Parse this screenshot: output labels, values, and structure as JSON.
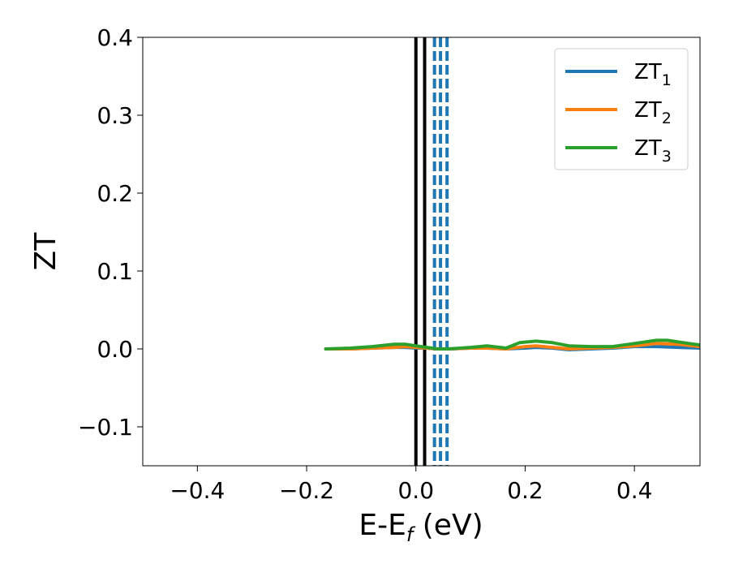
{
  "chart_data": {
    "type": "line",
    "xlabel_main": "E-E",
    "xlabel_sub": "f",
    "xlabel_unit": " (eV)",
    "ylabel": "ZT",
    "xlim": [
      -0.5,
      0.52
    ],
    "ylim": [
      -0.15,
      0.4
    ],
    "xticks": [
      -0.4,
      -0.2,
      0.0,
      0.2,
      0.4
    ],
    "xtick_labels": [
      "−0.4",
      "−0.2",
      "0.0",
      "0.2",
      "0.4"
    ],
    "yticks": [
      -0.1,
      0.0,
      0.1,
      0.2,
      0.3,
      0.4
    ],
    "ytick_labels": [
      "−0.1",
      "0.0",
      "0.1",
      "0.2",
      "0.3",
      "0.4"
    ],
    "grid": false,
    "legend_position": "top-right",
    "series": [
      {
        "name": "ZT",
        "name_sub": "1",
        "color": "#1f77b4",
        "x": [
          -0.165,
          -0.12,
          -0.08,
          -0.04,
          -0.02,
          0.0,
          0.02,
          0.04,
          0.06,
          0.1,
          0.13,
          0.165,
          0.2,
          0.22,
          0.25,
          0.28,
          0.32,
          0.36,
          0.4,
          0.44,
          0.48,
          0.52
        ],
        "y": [
          0.0,
          0.0,
          0.001,
          0.002,
          0.002,
          0.001,
          0.001,
          0.0,
          0.0,
          0.001,
          0.001,
          0.0,
          0.001,
          0.002,
          0.001,
          -0.001,
          0.0,
          0.001,
          0.003,
          0.003,
          0.002,
          0.001
        ]
      },
      {
        "name": "ZT",
        "name_sub": "2",
        "color": "#ff7f0e",
        "x": [
          -0.165,
          -0.12,
          -0.08,
          -0.04,
          -0.02,
          0.0,
          0.02,
          0.04,
          0.06,
          0.1,
          0.13,
          0.165,
          0.2,
          0.22,
          0.25,
          0.28,
          0.32,
          0.36,
          0.4,
          0.44,
          0.48,
          0.52
        ],
        "y": [
          0.0,
          0.0,
          0.001,
          0.002,
          0.003,
          0.002,
          0.001,
          0.0,
          0.0,
          0.001,
          0.001,
          0.0,
          0.003,
          0.004,
          0.002,
          0.0,
          0.001,
          0.002,
          0.004,
          0.007,
          0.006,
          0.003
        ]
      },
      {
        "name": "ZT",
        "name_sub": "3",
        "color": "#2ca02c",
        "x": [
          -0.165,
          -0.12,
          -0.08,
          -0.04,
          -0.02,
          0.0,
          0.02,
          0.04,
          0.06,
          0.1,
          0.13,
          0.165,
          0.19,
          0.22,
          0.25,
          0.28,
          0.32,
          0.36,
          0.4,
          0.44,
          0.46,
          0.5,
          0.52
        ],
        "y": [
          0.0,
          0.001,
          0.003,
          0.006,
          0.006,
          0.004,
          0.002,
          0.0,
          0.0,
          0.002,
          0.004,
          0.001,
          0.008,
          0.01,
          0.008,
          0.004,
          0.003,
          0.003,
          0.007,
          0.011,
          0.011,
          0.007,
          0.005
        ]
      }
    ],
    "vlines": [
      {
        "x": 0.0,
        "style": "solid",
        "color": "#000000"
      },
      {
        "x": 0.016,
        "style": "solid",
        "color": "#000000"
      },
      {
        "x": 0.034,
        "style": "dashed",
        "color": "#1f77b4"
      },
      {
        "x": 0.045,
        "style": "dashed",
        "color": "#1f77b4"
      },
      {
        "x": 0.057,
        "style": "dashed",
        "color": "#1f77b4"
      }
    ]
  }
}
